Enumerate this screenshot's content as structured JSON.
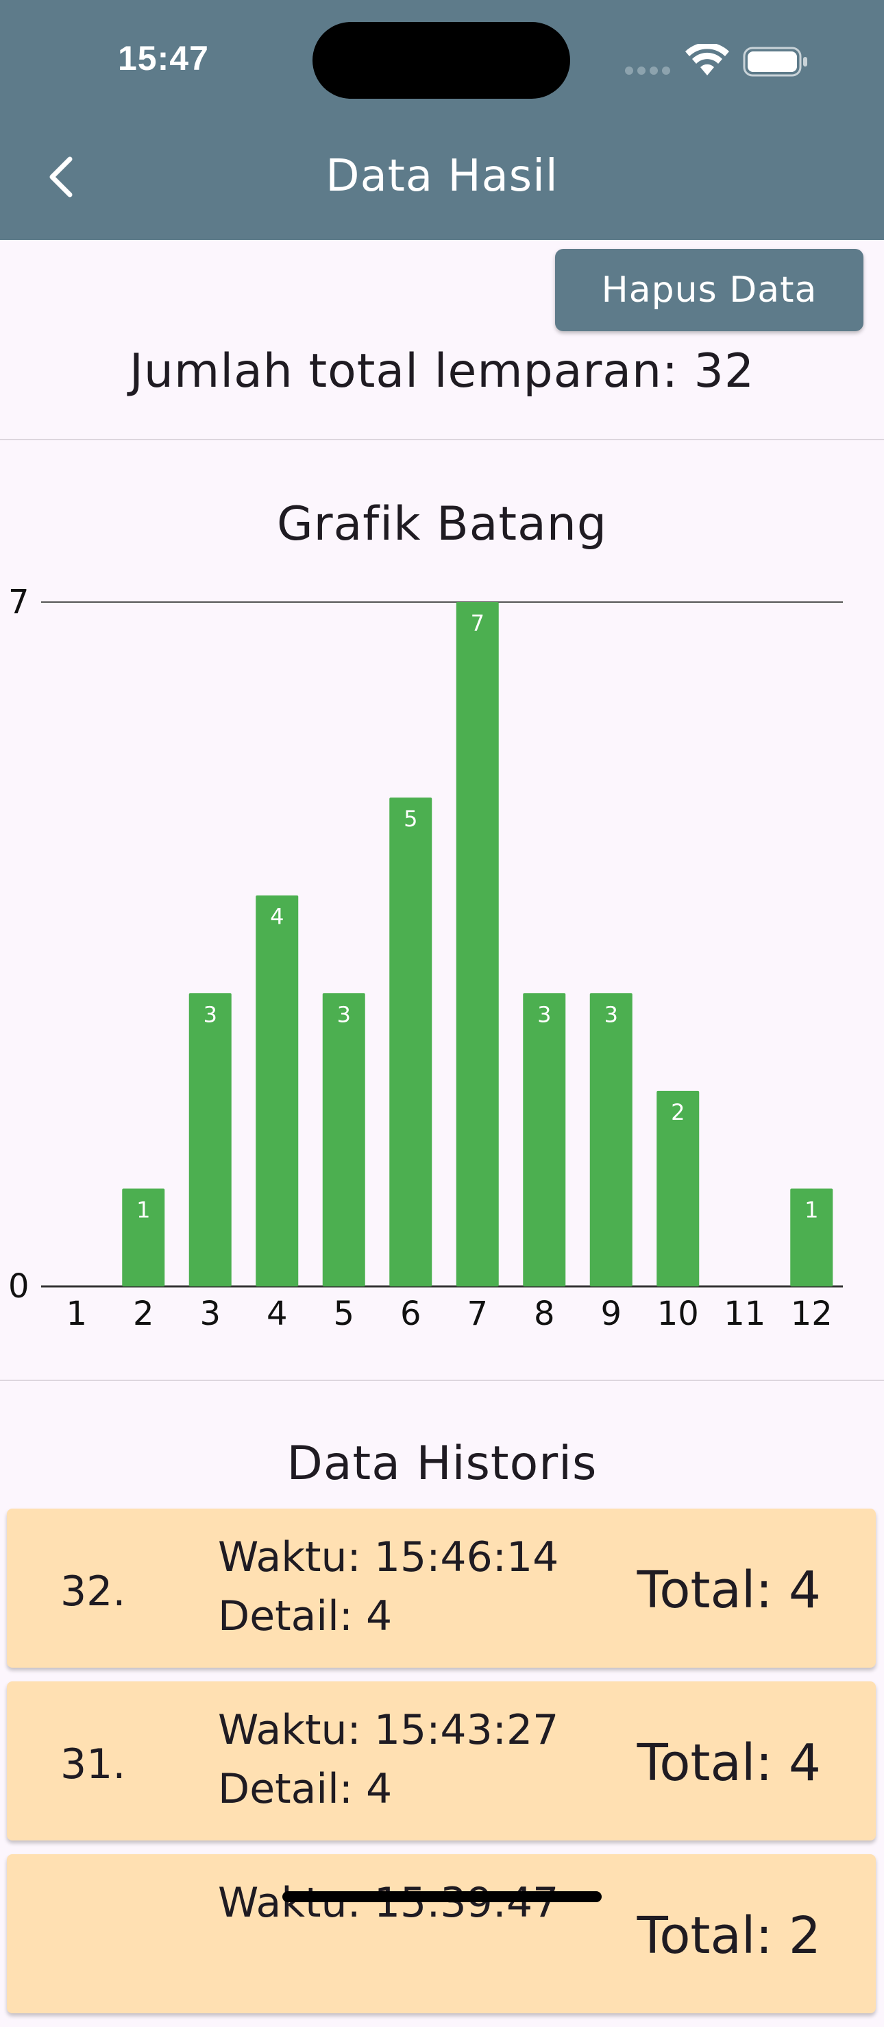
{
  "status": {
    "time": "15:47"
  },
  "appbar": {
    "title": "Data Hasil",
    "back_icon": "chevron-left-icon"
  },
  "actions": {
    "hapus_label": "Hapus Data"
  },
  "summary": {
    "total_text": "Jumlah total lemparan: 32"
  },
  "chart_section": {
    "title": "Grafik Batang"
  },
  "chart_data": {
    "type": "bar",
    "title": "Grafik Batang",
    "categories": [
      "1",
      "2",
      "3",
      "4",
      "5",
      "6",
      "7",
      "8",
      "9",
      "10",
      "11",
      "12"
    ],
    "values": [
      0,
      1,
      3,
      4,
      3,
      5,
      7,
      3,
      3,
      2,
      0,
      1
    ],
    "ylim": [
      0,
      7
    ],
    "ytick_labels": [
      "0",
      "7"
    ],
    "bar_color": "#4caf50",
    "grid": true
  },
  "history": {
    "title": "Data Historis",
    "items": [
      {
        "num": "32.",
        "waktu": "Waktu: 15:46:14",
        "detail": "Detail: 4",
        "total": "Total: 4"
      },
      {
        "num": "31.",
        "waktu": "Waktu: 15:43:27",
        "detail": "Detail: 4",
        "total": "Total: 4"
      },
      {
        "num": "",
        "waktu": "Waktu: 15:39:47",
        "detail": "",
        "total": "Total: 2"
      }
    ]
  },
  "colors": {
    "appbar": "#5e7b8a",
    "card": "#ffe0b2",
    "background": "#fcf6fd"
  }
}
